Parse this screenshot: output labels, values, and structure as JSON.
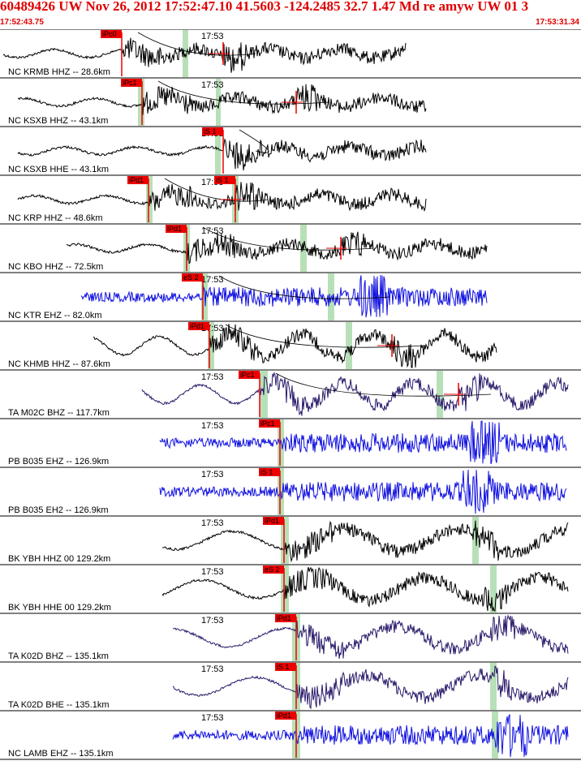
{
  "header": {
    "title": "60489426 UW Nov 26, 2012 17:52:47.10   41.5603 -124.2485 32.7 1.47 Md re amyw UW 01   3",
    "start_time": "17:52:43.75",
    "end_time": "17:53:31.34"
  },
  "colors": {
    "header_text": "#e00000",
    "pick_box": "#ee0000",
    "shade": "#b8e0b8",
    "trace_black": "#000000",
    "trace_blue": "#1010e0",
    "trace_navy": "#2a1a6a"
  },
  "minute_mark": "17:53",
  "traces": [
    {
      "label": "NC KRMB HHZ -- 28.6km",
      "color": "black",
      "pick": "iPc0",
      "start": 0.0
    },
    {
      "label": "NC KSXB HHZ -- 43.1km",
      "color": "black",
      "pick": "iPc1",
      "start": 0.02
    },
    {
      "label": "NC KSXB HHE -- 43.1km",
      "color": "black",
      "pick": "iS 1",
      "start": 0.02
    },
    {
      "label": "NC KRP HHZ -- 48.6km",
      "color": "black",
      "pick": "iPd1",
      "pick2": "iS 1",
      "start": 0.03
    },
    {
      "label": "NC KBO HHZ -- 72.5km",
      "color": "black",
      "pick": "iPd1",
      "start": 0.11
    },
    {
      "label": "NC KTR EHZ -- 82.0km",
      "color": "blue",
      "pick": "eS 2",
      "start": 0.14
    },
    {
      "label": "NC KHMB HHZ -- 87.6km",
      "color": "black",
      "pick": "iPd1",
      "start": 0.16
    },
    {
      "label": "TA M02C BHZ -- 117.7km",
      "color": "navy",
      "pick": "iPc1",
      "start": 0.25
    },
    {
      "label": "PB B035 EHZ -- 126.9km",
      "color": "blue",
      "pick": "iPc1",
      "start": 0.28
    },
    {
      "label": "PB B035 EH2 -- 126.9km",
      "color": "blue",
      "pick": "iS 1",
      "start": 0.28
    },
    {
      "label": "BK YBH HHZ 00 129.2km",
      "color": "black",
      "pick": "iPd1",
      "start": 0.28
    },
    {
      "label": "BK YBH HHE 00 129.2km",
      "color": "black",
      "pick": "eS 2",
      "start": 0.28
    },
    {
      "label": "TA K02D BHZ -- 135.1km",
      "color": "navy",
      "pick": "iPd1",
      "start": 0.29
    },
    {
      "label": "TA K02D BHE -- 135.1km",
      "color": "navy",
      "pick": "iS 1",
      "start": 0.29
    },
    {
      "label": "NC LAMB EHZ -- 135.1km",
      "color": "blue",
      "pick": "iPd1",
      "start": 0.29
    }
  ]
}
